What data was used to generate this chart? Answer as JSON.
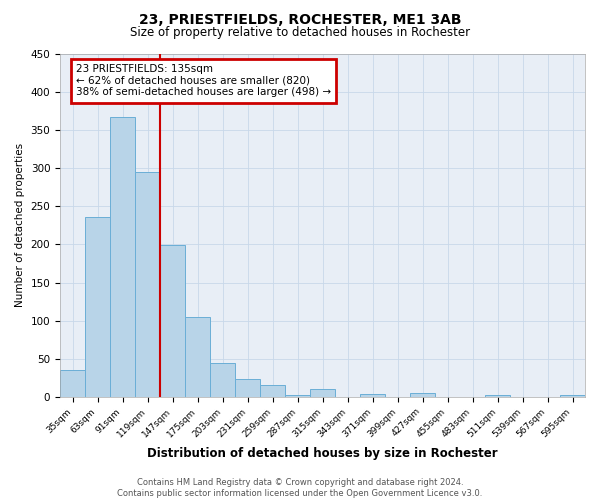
{
  "title": "23, PRIESTFIELDS, ROCHESTER, ME1 3AB",
  "subtitle": "Size of property relative to detached houses in Rochester",
  "xlabel": "Distribution of detached houses by size in Rochester",
  "ylabel": "Number of detached properties",
  "categories": [
    "35sqm",
    "63sqm",
    "91sqm",
    "119sqm",
    "147sqm",
    "175sqm",
    "203sqm",
    "231sqm",
    "259sqm",
    "287sqm",
    "315sqm",
    "343sqm",
    "371sqm",
    "399sqm",
    "427sqm",
    "455sqm",
    "483sqm",
    "511sqm",
    "539sqm",
    "567sqm",
    "595sqm"
  ],
  "values": [
    35,
    236,
    367,
    295,
    199,
    105,
    45,
    23,
    15,
    3,
    10,
    0,
    4,
    0,
    5,
    0,
    0,
    3,
    0,
    0,
    3
  ],
  "bar_color": "#b8d4e8",
  "bar_edge_color": "#6aaed6",
  "background_color": "#e8eef6",
  "ylim": [
    0,
    450
  ],
  "yticks": [
    0,
    50,
    100,
    150,
    200,
    250,
    300,
    350,
    400,
    450
  ],
  "annotation_title": "23 PRIESTFIELDS: 135sqm",
  "annotation_line1": "← 62% of detached houses are smaller (820)",
  "annotation_line2": "38% of semi-detached houses are larger (498) →",
  "annotation_box_color": "#ffffff",
  "annotation_box_edge_color": "#cc0000",
  "property_line_color": "#cc0000",
  "footer_line1": "Contains HM Land Registry data © Crown copyright and database right 2024.",
  "footer_line2": "Contains public sector information licensed under the Open Government Licence v3.0."
}
